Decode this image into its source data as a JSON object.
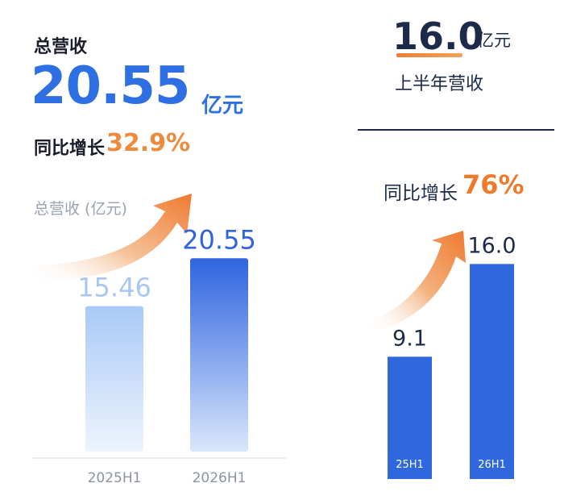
{
  "left": {
    "title": "总营收",
    "value": "20.55",
    "unit": "亿元",
    "yoy_label": "同比增长",
    "yoy_value": "32.9%",
    "chart_title": "总营收 (亿元)"
  },
  "right": {
    "value": "16.0",
    "unit": "亿元",
    "subtitle": "上半年营收",
    "yoy_label": "同比增长",
    "yoy_value": "76%"
  },
  "colors": {
    "blue": "#2f6fe4",
    "light_blue": "#9cc3f5",
    "orange": "#ee8a3c",
    "navy": "#1d2a4a"
  },
  "chart_data": [
    {
      "type": "bar",
      "title": "总营收 (亿元)",
      "categories": [
        "2025H1",
        "2026H1"
      ],
      "values": [
        15.46,
        20.55
      ],
      "value_labels": [
        "15.46",
        "20.55"
      ],
      "ylim": [
        0,
        24
      ],
      "grid": false
    },
    {
      "type": "bar",
      "title": "",
      "categories": [
        "25H1",
        "26H1"
      ],
      "values": [
        9.1,
        16.0
      ],
      "value_labels": [
        "9.1",
        "16.0"
      ],
      "ylim": [
        0,
        18
      ],
      "grid": false
    }
  ]
}
